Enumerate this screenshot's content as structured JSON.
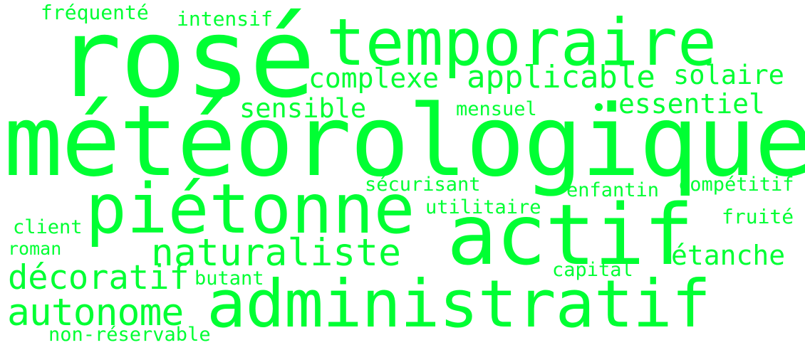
{
  "theme": {
    "word_color": "#00ff33",
    "background": "#ffffff"
  },
  "words": {
    "frequente": "fréquenté",
    "intensif": "intensif",
    "rose": "rosé",
    "temporaire": "temporaire",
    "complexe": "complexe",
    "applicable": "applicable",
    "solaire": "solaire",
    "sensible": "sensible",
    "mensuel": "mensuel",
    "essentiel": "essentiel",
    "meteorologique": "météorologique",
    "securisant": "sécurisant",
    "enfantin": "enfantin",
    "competitif": "compétitif",
    "pietonne": "piétonne",
    "utilitaire": "utilitaire",
    "actif": "actif",
    "fruite": "fruité",
    "client": "client",
    "roman": "roman",
    "naturaliste": "naturaliste",
    "etanche": "étanche",
    "decoratif": "décoratif",
    "capital": "capital",
    "butant": "butant",
    "autonome": "autonome",
    "administratif": "administratif",
    "non_reservable": "non-réservable"
  }
}
